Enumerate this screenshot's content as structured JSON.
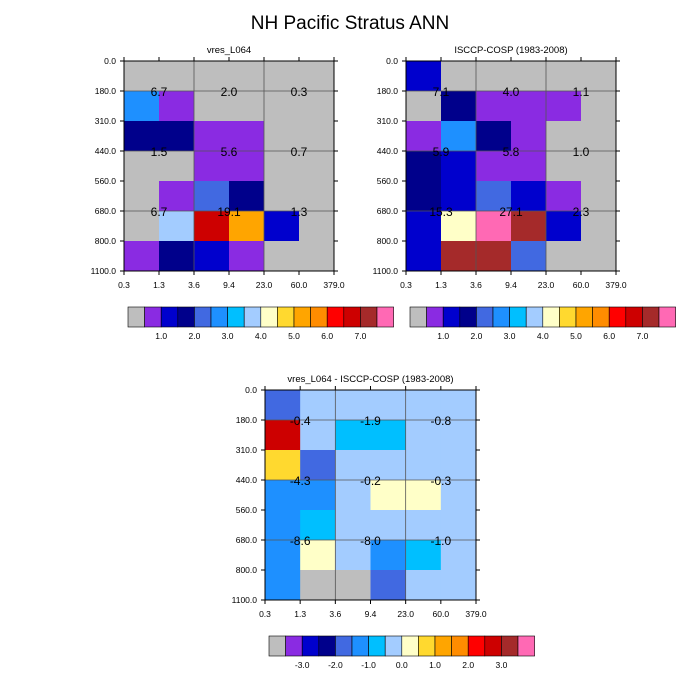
{
  "page_title": "NH Pacific Stratus ANN",
  "chart_data": [
    {
      "type": "heatmap",
      "title": "vres_L064",
      "x_edges": [
        "0.3",
        "1.3",
        "3.6",
        "9.4",
        "23.0",
        "60.0",
        "379.0"
      ],
      "y_edges": [
        "0.0",
        "180.0",
        "310.0",
        "440.0",
        "560.0",
        "680.0",
        "800.0",
        "1100.0"
      ],
      "cells": [
        [
          0,
          0,
          0,
          0,
          0,
          0
        ],
        [
          5,
          1,
          0,
          0,
          0,
          0
        ],
        [
          3,
          3,
          1,
          1,
          0,
          0
        ],
        [
          0,
          0,
          1,
          1,
          0,
          0
        ],
        [
          0,
          1,
          4,
          3,
          0,
          0
        ],
        [
          0,
          7,
          13,
          10,
          2,
          0
        ],
        [
          1,
          3,
          2,
          1,
          0,
          0
        ]
      ],
      "box_labels": [
        {
          "row": 1,
          "col": 0,
          "text": "6.7"
        },
        {
          "row": 1,
          "col": 1,
          "text": "2.0"
        },
        {
          "row": 1,
          "col": 2,
          "text": "0.3"
        },
        {
          "row": 2,
          "col": 0,
          "text": "1.5"
        },
        {
          "row": 2,
          "col": 1,
          "text": "5.6"
        },
        {
          "row": 2,
          "col": 2,
          "text": "0.7"
        },
        {
          "row": 3,
          "col": 0,
          "text": "6.7"
        },
        {
          "row": 3,
          "col": 1,
          "text": "19.1"
        },
        {
          "row": 3,
          "col": 2,
          "text": "1.3"
        }
      ],
      "colorbar_labels": [
        "1.0",
        "2.0",
        "3.0",
        "4.0",
        "5.0",
        "6.0",
        "7.0"
      ],
      "colorbar_colors": [
        "#BEBEBE",
        "#8A2BE2",
        "#0000CD",
        "#00008B",
        "#4169E1",
        "#1E90FF",
        "#00BFFF",
        "#A3CCFF",
        "#FFFFC8",
        "#FFD92F",
        "#FFA500",
        "#FF8C00",
        "#FF0000",
        "#CD0000",
        "#A52A2A",
        "#FF69B4"
      ]
    },
    {
      "type": "heatmap",
      "title": "ISCCP-COSP (1983-2008)",
      "x_edges": [
        "0.3",
        "1.3",
        "3.6",
        "9.4",
        "23.0",
        "60.0",
        "379.0"
      ],
      "y_edges": [
        "0.0",
        "180.0",
        "310.0",
        "440.0",
        "560.0",
        "680.0",
        "800.0",
        "1100.0"
      ],
      "cells": [
        [
          2,
          0,
          0,
          0,
          0,
          0
        ],
        [
          0,
          3,
          1,
          1,
          1,
          0
        ],
        [
          1,
          5,
          3,
          1,
          0,
          0
        ],
        [
          3,
          2,
          1,
          1,
          0,
          0
        ],
        [
          3,
          2,
          4,
          2,
          1,
          0
        ],
        [
          2,
          8,
          15,
          14,
          2,
          0
        ],
        [
          2,
          14,
          14,
          4,
          0,
          0
        ]
      ],
      "box_labels": [
        {
          "row": 1,
          "col": 0,
          "text": "7.1"
        },
        {
          "row": 1,
          "col": 1,
          "text": "4.0"
        },
        {
          "row": 1,
          "col": 2,
          "text": "1.1"
        },
        {
          "row": 2,
          "col": 0,
          "text": "5.9"
        },
        {
          "row": 2,
          "col": 1,
          "text": "5.8"
        },
        {
          "row": 2,
          "col": 2,
          "text": "1.0"
        },
        {
          "row": 3,
          "col": 0,
          "text": "15.3"
        },
        {
          "row": 3,
          "col": 1,
          "text": "27.1"
        },
        {
          "row": 3,
          "col": 2,
          "text": "2.3"
        }
      ],
      "colorbar_labels": [
        "1.0",
        "2.0",
        "3.0",
        "4.0",
        "5.0",
        "6.0",
        "7.0"
      ],
      "colorbar_colors": [
        "#BEBEBE",
        "#8A2BE2",
        "#0000CD",
        "#00008B",
        "#4169E1",
        "#1E90FF",
        "#00BFFF",
        "#A3CCFF",
        "#FFFFC8",
        "#FFD92F",
        "#FFA500",
        "#FF8C00",
        "#FF0000",
        "#CD0000",
        "#A52A2A",
        "#FF69B4"
      ]
    },
    {
      "type": "heatmap",
      "title": "vres_L064 - ISCCP-COSP (1983-2008)",
      "x_edges": [
        "0.3",
        "1.3",
        "3.6",
        "9.4",
        "23.0",
        "60.0",
        "379.0"
      ],
      "y_edges": [
        "0.0",
        "180.0",
        "310.0",
        "440.0",
        "560.0",
        "680.0",
        "800.0",
        "1100.0"
      ],
      "cells": [
        [
          4,
          7,
          7,
          7,
          7,
          7
        ],
        [
          13,
          7,
          6,
          6,
          7,
          7
        ],
        [
          9,
          4,
          7,
          7,
          7,
          7
        ],
        [
          5,
          5,
          7,
          8,
          8,
          7
        ],
        [
          5,
          6,
          7,
          7,
          7,
          7
        ],
        [
          5,
          8,
          7,
          5,
          6,
          7
        ],
        [
          5,
          0,
          0,
          4,
          7,
          7
        ]
      ],
      "box_labels": [
        {
          "row": 1,
          "col": 0,
          "text": "-0.4"
        },
        {
          "row": 1,
          "col": 1,
          "text": "-1.9"
        },
        {
          "row": 1,
          "col": 2,
          "text": "-0.8"
        },
        {
          "row": 2,
          "col": 0,
          "text": "-4.3"
        },
        {
          "row": 2,
          "col": 1,
          "text": "-0.2"
        },
        {
          "row": 2,
          "col": 2,
          "text": "-0.3"
        },
        {
          "row": 3,
          "col": 0,
          "text": "-8.6"
        },
        {
          "row": 3,
          "col": 1,
          "text": "-8.0"
        },
        {
          "row": 3,
          "col": 2,
          "text": "-1.0"
        }
      ],
      "colorbar_labels": [
        "-3.0",
        "-2.0",
        "-1.0",
        "0.0",
        "1.0",
        "2.0",
        "3.0"
      ],
      "colorbar_colors": [
        "#BEBEBE",
        "#8A2BE2",
        "#0000CD",
        "#00008B",
        "#4169E1",
        "#1E90FF",
        "#00BFFF",
        "#A3CCFF",
        "#FFFFC8",
        "#FFD92F",
        "#FFA500",
        "#FF8C00",
        "#FF0000",
        "#CD0000",
        "#A52A2A",
        "#FF69B4"
      ]
    }
  ]
}
